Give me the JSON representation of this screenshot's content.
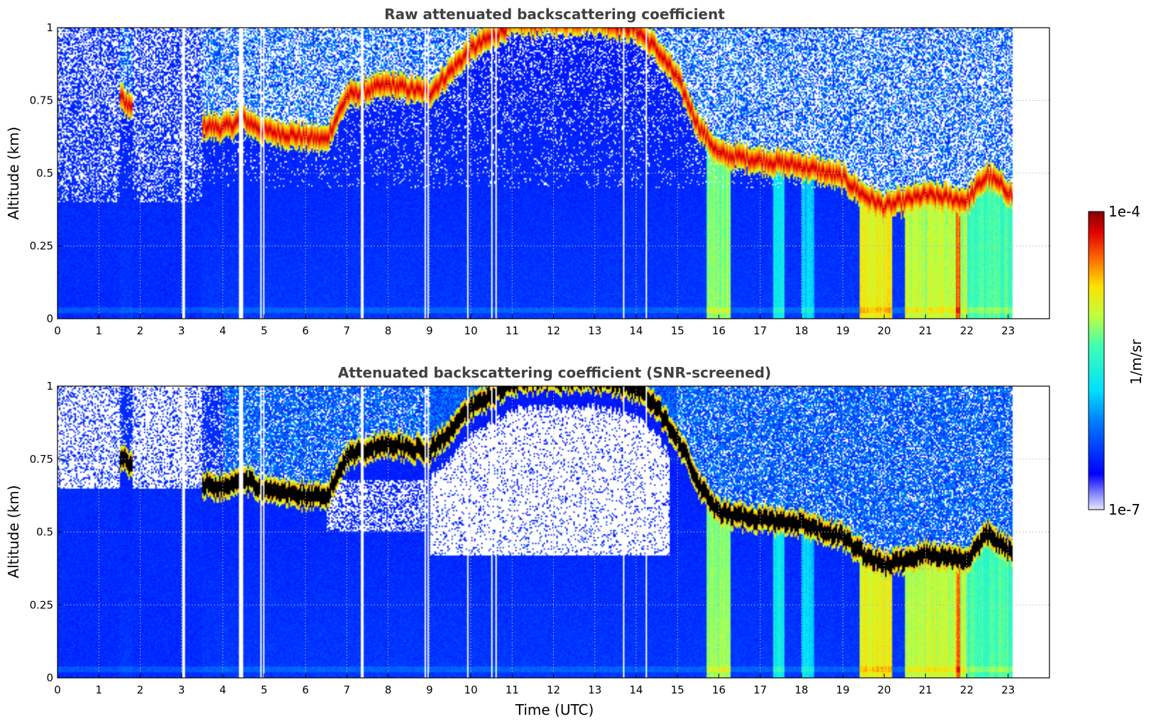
{
  "chart_data": [
    {
      "type": "heatmap",
      "title": "Raw attenuated backscattering coefficient",
      "xlabel": "",
      "ylabel": "Altitude (km)",
      "xlim": [
        0,
        24
      ],
      "ylim": [
        0,
        1
      ],
      "xticks": [
        "0",
        "1",
        "2",
        "3",
        "4",
        "5",
        "6",
        "7",
        "8",
        "9",
        "10",
        "11",
        "12",
        "13",
        "14",
        "15",
        "16",
        "17",
        "18",
        "19",
        "20",
        "21",
        "22",
        "23"
      ],
      "yticks": [
        "0",
        "0.25",
        "0.5",
        "0.75",
        "1"
      ],
      "ytick_values": [
        0,
        0.25,
        0.5,
        0.75,
        1
      ],
      "grid": true,
      "data_end_hour": 23.1,
      "cloud_base_km": {
        "hours": [
          0,
          1.5,
          1.8,
          2.0,
          3.5,
          4.0,
          4.5,
          5.0,
          6.0,
          6.5,
          7.0,
          8.0,
          9.0,
          10.0,
          11.0,
          13.0,
          14.0,
          14.5,
          15.0,
          15.5,
          16.0,
          17.0,
          18.0,
          19.0,
          19.5,
          20.0,
          21.0,
          22.0,
          22.5,
          23.1
        ],
        "base": [
          null,
          0.72,
          0.68,
          null,
          0.62,
          0.61,
          0.64,
          0.6,
          0.58,
          0.57,
          0.72,
          0.76,
          0.73,
          0.88,
          0.97,
          0.98,
          0.95,
          0.88,
          0.78,
          0.62,
          0.52,
          0.5,
          0.48,
          0.44,
          0.38,
          0.34,
          0.38,
          0.36,
          0.45,
          0.38
        ]
      }
    },
    {
      "type": "heatmap",
      "title": "Attenuated backscattering coefficient (SNR-screened)",
      "xlabel": "Time (UTC)",
      "ylabel": "Altitude (km)",
      "xlim": [
        0,
        24
      ],
      "ylim": [
        0,
        1
      ],
      "xticks": [
        "0",
        "1",
        "2",
        "3",
        "4",
        "5",
        "6",
        "7",
        "8",
        "9",
        "10",
        "11",
        "12",
        "13",
        "14",
        "15",
        "16",
        "17",
        "18",
        "19",
        "20",
        "21",
        "22",
        "23"
      ],
      "yticks": [
        "0",
        "0.25",
        "0.5",
        "0.75",
        "1"
      ],
      "ytick_values": [
        0,
        0.25,
        0.5,
        0.75,
        1
      ],
      "grid": true,
      "data_end_hour": 23.1
    }
  ],
  "colorbar": {
    "max_label": "1e-4",
    "min_label": "1e-7",
    "unit_label": "1/m/sr",
    "colormap": "jet"
  }
}
